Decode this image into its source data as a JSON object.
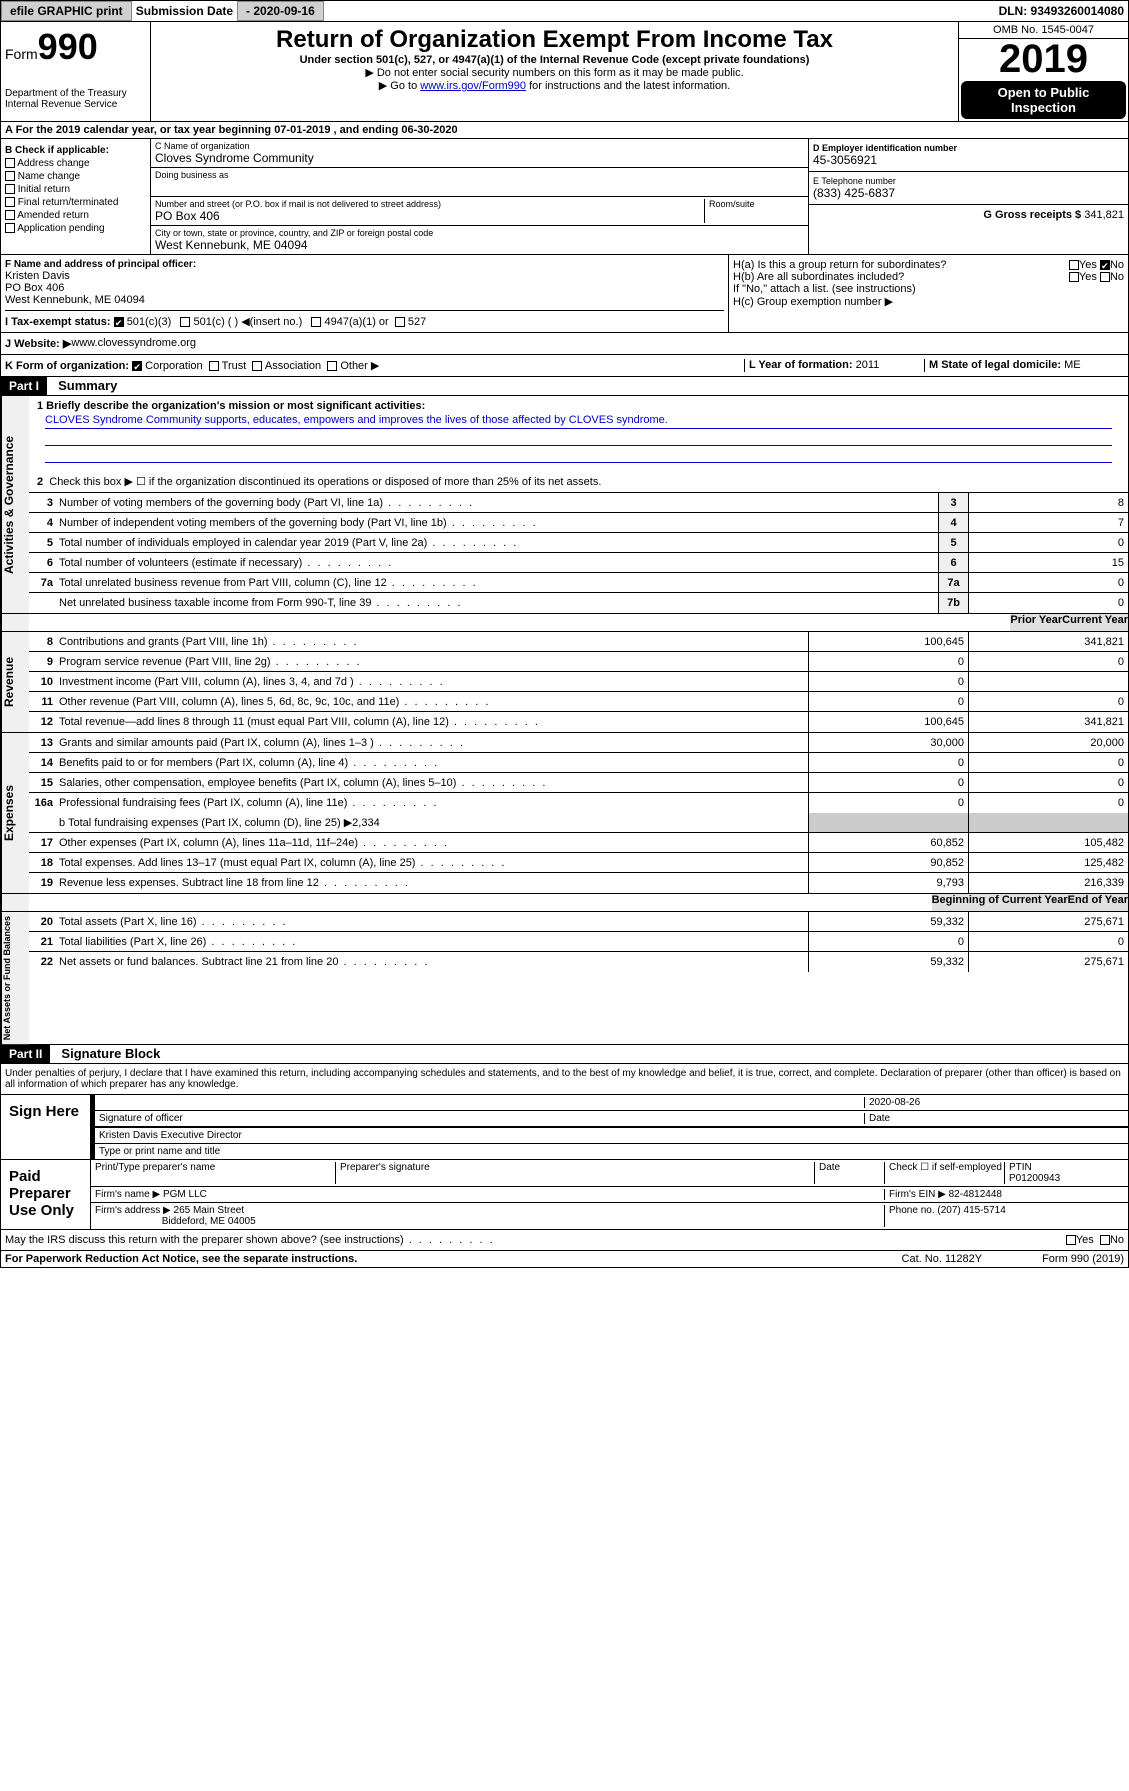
{
  "top": {
    "efile": "efile GRAPHIC print",
    "sub_lbl": "Submission Date",
    "sub_date": "- 2020-09-16",
    "dln": "DLN: 93493260014080"
  },
  "hdr": {
    "form": "Form",
    "num": "990",
    "dept": "Department of the Treasury\nInternal Revenue Service",
    "title": "Return of Organization Exempt From Income Tax",
    "sub": "Under section 501(c), 527, or 4947(a)(1) of the Internal Revenue Code (except private foundations)",
    "note1": "▶ Do not enter social security numbers on this form as it may be made public.",
    "note2_a": "▶ Go to ",
    "note2_link": "www.irs.gov/Form990",
    "note2_b": " for instructions and the latest information.",
    "omb": "OMB No. 1545-0047",
    "year": "2019",
    "badge1": "Open to Public",
    "badge2": "Inspection"
  },
  "ty": "A For the 2019 calendar year, or tax year beginning 07-01-2019    , and ending 06-30-2020",
  "b": {
    "lbl": "B Check if applicable:",
    "o1": "Address change",
    "o2": "Name change",
    "o3": "Initial return",
    "o4": "Final return/terminated",
    "o5": "Amended return",
    "o6": "Application pending"
  },
  "c": {
    "name_lbl": "C Name of organization",
    "name": "Cloves Syndrome Community",
    "dba_lbl": "Doing business as",
    "addr_lbl": "Number and street (or P.O. box if mail is not delivered to street address)",
    "room_lbl": "Room/suite",
    "addr": "PO Box 406",
    "city_lbl": "City or town, state or province, country, and ZIP or foreign postal code",
    "city": "West Kennebunk, ME   04094"
  },
  "d": {
    "lbl": "D Employer identification number",
    "val": "45-3056921"
  },
  "e": {
    "lbl": "E Telephone number",
    "val": "(833) 425-6837"
  },
  "g": {
    "lbl": "G Gross receipts $",
    "val": "341,821"
  },
  "f": {
    "lbl": "F  Name and address of principal officer:",
    "name": "Kristen Davis",
    "addr1": "PO Box 406",
    "addr2": "West Kennebunk, ME   04094"
  },
  "h": {
    "a": "H(a)  Is this a group return for subordinates?",
    "b": "H(b)  Are all subordinates included?",
    "b2": "If \"No,\" attach a list. (see instructions)",
    "c": "H(c)  Group exemption number ▶",
    "yes": "Yes",
    "no": "No"
  },
  "tax": {
    "i": "I   Tax-exempt status:",
    "o1": "501(c)(3)",
    "o2": "501(c) (   ) ◀(insert no.)",
    "o3": "4947(a)(1) or",
    "o4": "527"
  },
  "j": {
    "lbl": "J   Website: ▶",
    "val": "  www.clovessyndrome.org"
  },
  "k": {
    "lbl": "K Form of organization:",
    "o1": "Corporation",
    "o2": "Trust",
    "o3": "Association",
    "o4": "Other ▶"
  },
  "l": {
    "lbl": "L Year of formation:",
    "val": "2011"
  },
  "m": {
    "lbl": "M State of legal domicile:",
    "val": "ME"
  },
  "p1": {
    "hdr": "Part I",
    "title": "Summary",
    "s1_lbl": "Activities & Governance",
    "l1a": "1  Briefly describe the organization's mission or most significant activities:",
    "l1b": "CLOVES Syndrome Community supports, educates, empowers and improves the lives of those affected by CLOVES syndrome.",
    "l2": "Check this box ▶ ☐  if the organization discontinued its operations or disposed of more than 25% of its net assets.",
    "rows_gov": [
      {
        "n": "3",
        "d": "Number of voting members of the governing body (Part VI, line 1a)",
        "b": "3",
        "v": "8"
      },
      {
        "n": "4",
        "d": "Number of independent voting members of the governing body (Part VI, line 1b)",
        "b": "4",
        "v": "7"
      },
      {
        "n": "5",
        "d": "Total number of individuals employed in calendar year 2019 (Part V, line 2a)",
        "b": "5",
        "v": "0"
      },
      {
        "n": "6",
        "d": "Total number of volunteers (estimate if necessary)",
        "b": "6",
        "v": "15"
      },
      {
        "n": "7a",
        "d": "Total unrelated business revenue from Part VIII, column (C), line 12",
        "b": "7a",
        "v": "0"
      },
      {
        "n": "",
        "d": "Net unrelated business taxable income from Form 990-T, line 39",
        "b": "7b",
        "v": "0"
      }
    ],
    "s2_lbl": "Revenue",
    "col_prior": "Prior Year",
    "col_curr": "Current Year",
    "rows_rev": [
      {
        "n": "8",
        "d": "Contributions and grants (Part VIII, line 1h)",
        "p": "100,645",
        "c": "341,821"
      },
      {
        "n": "9",
        "d": "Program service revenue (Part VIII, line 2g)",
        "p": "0",
        "c": "0"
      },
      {
        "n": "10",
        "d": "Investment income (Part VIII, column (A), lines 3, 4, and 7d )",
        "p": "0",
        "c": ""
      },
      {
        "n": "11",
        "d": "Other revenue (Part VIII, column (A), lines 5, 6d, 8c, 9c, 10c, and 11e)",
        "p": "0",
        "c": "0"
      },
      {
        "n": "12",
        "d": "Total revenue—add lines 8 through 11 (must equal Part VIII, column (A), line 12)",
        "p": "100,645",
        "c": "341,821"
      }
    ],
    "s3_lbl": "Expenses",
    "rows_exp": [
      {
        "n": "13",
        "d": "Grants and similar amounts paid (Part IX, column (A), lines 1–3 )",
        "p": "30,000",
        "c": "20,000"
      },
      {
        "n": "14",
        "d": "Benefits paid to or for members (Part IX, column (A), line 4)",
        "p": "0",
        "c": "0"
      },
      {
        "n": "15",
        "d": "Salaries, other compensation, employee benefits (Part IX, column (A), lines 5–10)",
        "p": "0",
        "c": "0"
      },
      {
        "n": "16a",
        "d": "Professional fundraising fees (Part IX, column (A), line 11e)",
        "p": "0",
        "c": "0"
      }
    ],
    "l16b": "b  Total fundraising expenses (Part IX, column (D), line 25) ▶2,334",
    "rows_exp2": [
      {
        "n": "17",
        "d": "Other expenses (Part IX, column (A), lines 11a–11d, 11f–24e)",
        "p": "60,852",
        "c": "105,482"
      },
      {
        "n": "18",
        "d": "Total expenses. Add lines 13–17 (must equal Part IX, column (A), line 25)",
        "p": "90,852",
        "c": "125,482"
      },
      {
        "n": "19",
        "d": "Revenue less expenses. Subtract line 18 from line 12",
        "p": "9,793",
        "c": "216,339"
      }
    ],
    "s4_lbl": "Net Assets or Fund Balances",
    "col_beg": "Beginning of Current Year",
    "col_end": "End of Year",
    "rows_net": [
      {
        "n": "20",
        "d": "Total assets (Part X, line 16)",
        "p": "59,332",
        "c": "275,671"
      },
      {
        "n": "21",
        "d": "Total liabilities (Part X, line 26)",
        "p": "0",
        "c": "0"
      },
      {
        "n": "22",
        "d": "Net assets or fund balances. Subtract line 21 from line 20",
        "p": "59,332",
        "c": "275,671"
      }
    ]
  },
  "p2": {
    "hdr": "Part II",
    "title": "Signature Block",
    "decl": "Under penalties of perjury, I declare that I have examined this return, including accompanying schedules and statements, and to the best of my knowledge and belief, it is true, correct, and complete. Declaration of preparer (other than officer) is based on all information of which preparer has any knowledge.",
    "sign": "Sign Here",
    "date": "2020-08-26",
    "sig_lbl": "Signature of officer",
    "date_lbl": "Date",
    "officer": "Kristen Davis  Executive Director",
    "type_lbl": "Type or print name and title",
    "paid": "Paid Preparer Use Only",
    "prep_name_lbl": "Print/Type preparer's name",
    "prep_sig_lbl": "Preparer's signature",
    "prep_date_lbl": "Date",
    "check_lbl": "Check ☐ if self-employed",
    "ptin_lbl": "PTIN",
    "ptin": "P01200943",
    "firm_name_lbl": "Firm's name    ▶",
    "firm_name": "PGM LLC",
    "firm_ein_lbl": "Firm's EIN ▶",
    "firm_ein": "82-4812448",
    "firm_addr_lbl": "Firm's address ▶",
    "firm_addr": "265 Main Street",
    "firm_city": "Biddeford, ME   04005",
    "phone_lbl": "Phone no.",
    "phone": "(207) 415-5714",
    "discuss": "May the IRS discuss this return with the preparer shown above? (see instructions)"
  },
  "foot": {
    "l": "For Paperwork Reduction Act Notice, see the separate instructions.",
    "m": "Cat. No. 11282Y",
    "r": "Form 990 (2019)"
  }
}
